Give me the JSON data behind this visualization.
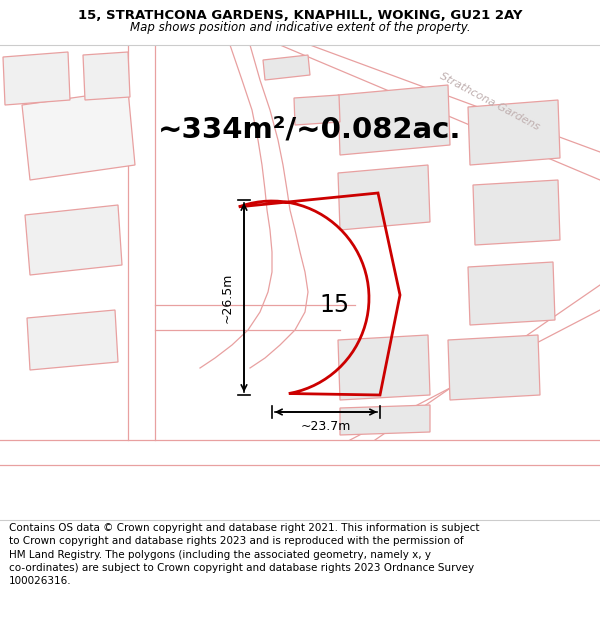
{
  "title_line1": "15, STRATHCONA GARDENS, KNAPHILL, WOKING, GU21 2AY",
  "title_line2": "Map shows position and indicative extent of the property.",
  "area_text": "~334m²/~0.082ac.",
  "label_15": "15",
  "dim_horizontal": "~23.7m",
  "dim_vertical": "~26.5m",
  "footer_text": "Contains OS data © Crown copyright and database right 2021. This information is subject to Crown copyright and database rights 2023 and is reproduced with the permission of HM Land Registry. The polygons (including the associated geometry, namely x, y co-ordinates) are subject to Crown copyright and database rights 2023 Ordnance Survey 100026316.",
  "bg_color": "#ffffff",
  "map_bg": "#ffffff",
  "road_fill": "#f8f0f0",
  "road_line_color": "#e8a0a0",
  "building_fill": "#e8e8e8",
  "building_edge": "#cccccc",
  "plot_fill": "none",
  "plot_edge": "#cc0000",
  "road_label_color": "#c0b0b0",
  "title_fontsize": 9.5,
  "subtitle_fontsize": 8.5,
  "area_fontsize": 21,
  "label_fontsize": 17,
  "dim_fontsize": 9,
  "footer_fontsize": 7.5
}
